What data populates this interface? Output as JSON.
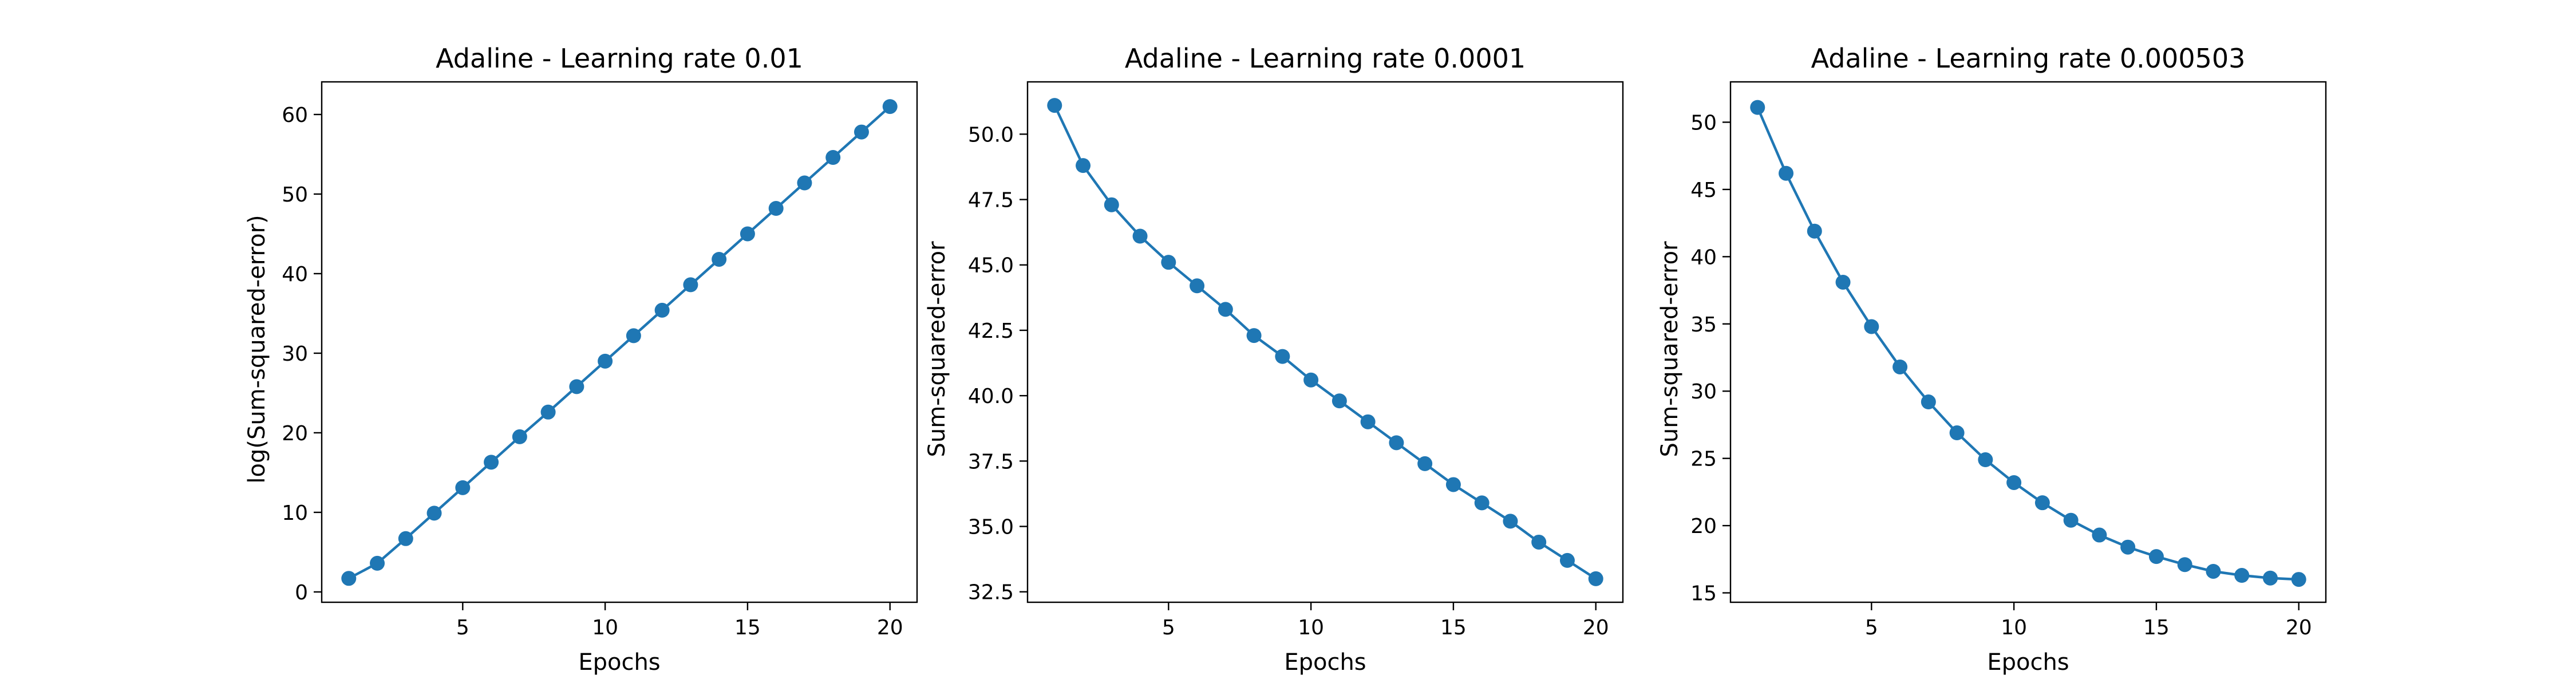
{
  "colors": {
    "series": "#1f77b4",
    "axes": "#000000",
    "background": "#ffffff"
  },
  "chart_data": [
    {
      "type": "line",
      "title": "Adaline - Learning rate 0.01",
      "xlabel": "Epochs",
      "ylabel": "log(Sum-squared-error)",
      "xlim": [
        0.05,
        20.95
      ],
      "ylim": [
        -1.3,
        64.1
      ],
      "xticks": [
        5,
        10,
        15,
        20
      ],
      "yticks": [
        0,
        10,
        20,
        30,
        40,
        50,
        60
      ],
      "ytick_labels": [
        "0",
        "10",
        "20",
        "30",
        "40",
        "50",
        "60"
      ],
      "grid": false,
      "marker": "circle",
      "series": [
        {
          "x": [
            1,
            2,
            3,
            4,
            5,
            6,
            7,
            8,
            9,
            10,
            11,
            12,
            13,
            14,
            15,
            16,
            17,
            18,
            19,
            20
          ],
          "values": [
            1.7,
            3.6,
            6.7,
            9.9,
            13.1,
            16.3,
            19.5,
            22.6,
            25.8,
            29.0,
            32.2,
            35.4,
            38.6,
            41.8,
            45.0,
            48.2,
            51.4,
            54.6,
            57.8,
            61.0
          ]
        }
      ]
    },
    {
      "type": "line",
      "title": "Adaline - Learning rate 0.0001",
      "xlabel": "Epochs",
      "ylabel": "Sum-squared-error",
      "xlim": [
        0.05,
        20.95
      ],
      "ylim": [
        32.1,
        52.0
      ],
      "xticks": [
        5,
        10,
        15,
        20
      ],
      "yticks": [
        32.5,
        35.0,
        37.5,
        40.0,
        42.5,
        45.0,
        47.5,
        50.0
      ],
      "ytick_labels": [
        "32.5",
        "35.0",
        "37.5",
        "40.0",
        "42.5",
        "45.0",
        "47.5",
        "50.0"
      ],
      "grid": false,
      "marker": "circle",
      "series": [
        {
          "x": [
            1,
            2,
            3,
            4,
            5,
            6,
            7,
            8,
            9,
            10,
            11,
            12,
            13,
            14,
            15,
            16,
            17,
            18,
            19,
            20
          ],
          "values": [
            51.1,
            48.8,
            47.3,
            46.1,
            45.1,
            44.2,
            43.3,
            42.3,
            41.5,
            40.6,
            39.8,
            39.0,
            38.2,
            37.4,
            36.6,
            35.9,
            35.2,
            34.4,
            33.7,
            33.0
          ]
        }
      ]
    },
    {
      "type": "line",
      "title": "Adaline - Learning rate 0.000503",
      "xlabel": "Epochs",
      "ylabel": "Sum-squared-error",
      "xlim": [
        0.05,
        20.95
      ],
      "ylim": [
        14.3,
        53.0
      ],
      "xticks": [
        5,
        10,
        15,
        20
      ],
      "yticks": [
        15,
        20,
        25,
        30,
        35,
        40,
        45,
        50
      ],
      "ytick_labels": [
        "15",
        "20",
        "25",
        "30",
        "35",
        "40",
        "45",
        "50"
      ],
      "grid": false,
      "marker": "circle",
      "series": [
        {
          "x": [
            1,
            2,
            3,
            4,
            5,
            6,
            7,
            8,
            9,
            10,
            11,
            12,
            13,
            14,
            15,
            16,
            17,
            18,
            19,
            20
          ],
          "values": [
            51.1,
            46.2,
            41.9,
            38.1,
            34.8,
            31.8,
            29.2,
            26.9,
            24.9,
            23.2,
            21.7,
            20.4,
            19.3,
            18.4,
            17.7,
            17.1,
            16.6,
            16.3,
            16.1,
            16.0
          ]
        }
      ]
    }
  ]
}
